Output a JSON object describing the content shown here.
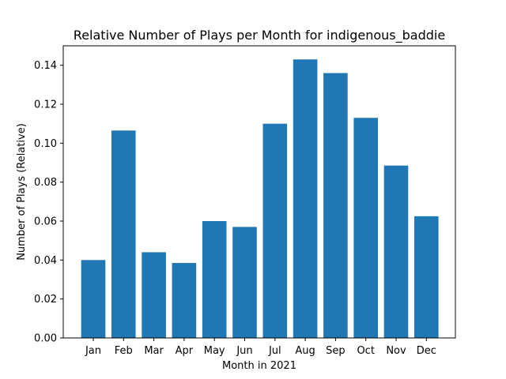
{
  "chart_data": {
    "type": "bar",
    "title": "Relative Number of Plays per Month for indigenous_baddie",
    "xlabel": "Month in 2021",
    "ylabel": "Number of Plays (Relative)",
    "categories": [
      "Jan",
      "Feb",
      "Mar",
      "Apr",
      "May",
      "Jun",
      "Jul",
      "Aug",
      "Sep",
      "Oct",
      "Nov",
      "Dec"
    ],
    "values": [
      0.04,
      0.1065,
      0.044,
      0.0385,
      0.06,
      0.057,
      0.11,
      0.143,
      0.136,
      0.113,
      0.0885,
      0.0625
    ],
    "ylim": [
      0,
      0.15
    ],
    "yticks": [
      0.0,
      0.02,
      0.04,
      0.06,
      0.08,
      0.1,
      0.12,
      0.14
    ],
    "ytick_labels": [
      "0.00",
      "0.02",
      "0.04",
      "0.06",
      "0.08",
      "0.10",
      "0.12",
      "0.14"
    ],
    "bar_color": "#1f77b4",
    "grid": false,
    "legend": "none"
  }
}
